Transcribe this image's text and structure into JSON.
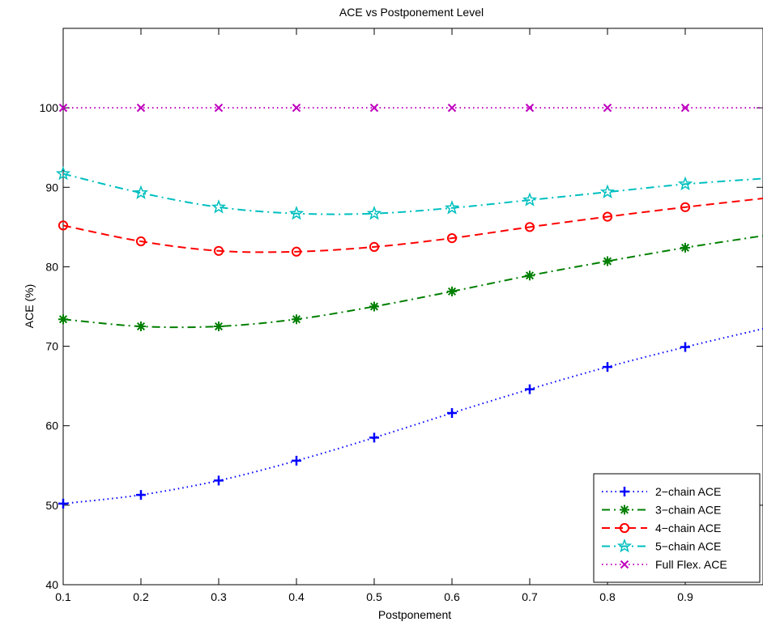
{
  "chart_data": {
    "type": "line",
    "title": "ACE vs Postponement Level",
    "xlabel": "Postponement",
    "ylabel": "ACE (%)",
    "xlim": [
      0.1,
      1.0
    ],
    "ylim": [
      40,
      110
    ],
    "xticks": [
      0.1,
      0.2,
      0.3,
      0.4,
      0.5,
      0.6,
      0.7,
      0.8,
      0.9
    ],
    "xtick_labels": [
      "0.1",
      "0.2",
      "0.3",
      "0.4",
      "0.5",
      "0.6",
      "0.7",
      "0.8",
      "0.9"
    ],
    "yticks": [
      40,
      50,
      60,
      70,
      80,
      90,
      100
    ],
    "ytick_labels": [
      "40",
      "50",
      "60",
      "70",
      "80",
      "90",
      "100"
    ],
    "grid": false,
    "legend_position": "bottom-right",
    "x": [
      0.1,
      0.2,
      0.3,
      0.4,
      0.5,
      0.6,
      0.7,
      0.8,
      0.9
    ],
    "series": [
      {
        "name": "2−chain ACE",
        "color": "#0000ff",
        "marker": "plus",
        "line_style": "dotted",
        "values": [
          50.2,
          51.3,
          53.1,
          55.6,
          58.5,
          61.6,
          64.6,
          67.4,
          69.9
        ],
        "end_value": 72.2
      },
      {
        "name": "3−chain ACE",
        "color": "#007f00",
        "marker": "asterisk",
        "line_style": "dashdot",
        "values": [
          73.4,
          72.5,
          72.5,
          73.4,
          75.0,
          76.9,
          78.9,
          80.7,
          82.4
        ],
        "end_value": 83.9
      },
      {
        "name": "4−chain ACE",
        "color": "#ff0000",
        "marker": "circle",
        "line_style": "dashed",
        "values": [
          85.2,
          83.2,
          82.0,
          81.9,
          82.5,
          83.6,
          85.0,
          86.3,
          87.5
        ],
        "end_value": 88.6
      },
      {
        "name": "5−chain ACE",
        "color": "#00bfbf",
        "marker": "star",
        "line_style": "dashdot",
        "values": [
          91.7,
          89.3,
          87.5,
          86.7,
          86.7,
          87.4,
          88.4,
          89.4,
          90.4
        ],
        "end_value": 91.1
      },
      {
        "name": "Full Flex. ACE",
        "color": "#bf00bf",
        "marker": "x",
        "line_style": "dotted",
        "values": [
          100,
          100,
          100,
          100,
          100,
          100,
          100,
          100,
          100
        ],
        "end_value": 100
      }
    ]
  }
}
